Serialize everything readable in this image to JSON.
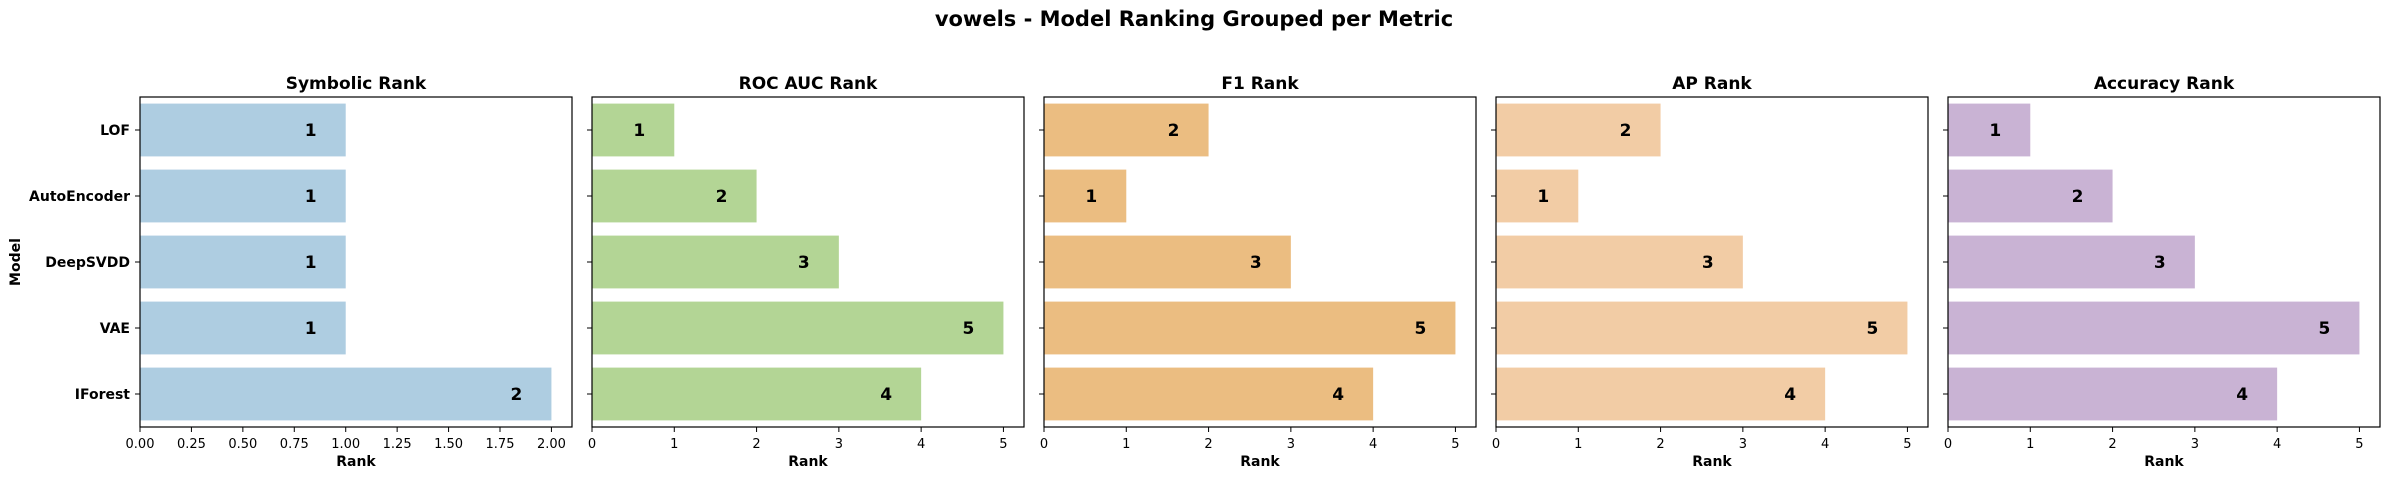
{
  "suptitle": "vowels - Model Ranking Grouped per Metric",
  "ylabel": "Model",
  "chart_data": [
    {
      "type": "bar",
      "orientation": "horizontal",
      "title": "Symbolic Rank",
      "xlabel": "Rank",
      "categories": [
        "LOF",
        "AutoEncoder",
        "DeepSVDD",
        "VAE",
        "IForest"
      ],
      "values": [
        1,
        1,
        1,
        1,
        2
      ],
      "xlim": [
        0,
        2.1
      ],
      "xticks": [
        "0.00",
        "0.25",
        "0.50",
        "0.75",
        "1.00",
        "1.25",
        "1.50",
        "1.75",
        "2.00"
      ],
      "color": "#aecde1",
      "grid": false
    },
    {
      "type": "bar",
      "orientation": "horizontal",
      "title": "ROC AUC Rank",
      "xlabel": "Rank",
      "categories": [
        "LOF",
        "AutoEncoder",
        "DeepSVDD",
        "VAE",
        "IForest"
      ],
      "values": [
        1,
        2,
        3,
        5,
        4
      ],
      "xlim": [
        0,
        5.25
      ],
      "xticks": [
        "0",
        "1",
        "2",
        "3",
        "4",
        "5"
      ],
      "color": "#b3d595",
      "grid": false
    },
    {
      "type": "bar",
      "orientation": "horizontal",
      "title": "F1 Rank",
      "xlabel": "Rank",
      "categories": [
        "LOF",
        "AutoEncoder",
        "DeepSVDD",
        "VAE",
        "IForest"
      ],
      "values": [
        2,
        1,
        3,
        5,
        4
      ],
      "xlim": [
        0,
        5.25
      ],
      "xticks": [
        "0",
        "1",
        "2",
        "3",
        "4",
        "5"
      ],
      "color": "#ebbd81",
      "grid": false
    },
    {
      "type": "bar",
      "orientation": "horizontal",
      "title": "AP Rank",
      "xlabel": "Rank",
      "categories": [
        "LOF",
        "AutoEncoder",
        "DeepSVDD",
        "VAE",
        "IForest"
      ],
      "values": [
        2,
        1,
        3,
        5,
        4
      ],
      "xlim": [
        0,
        5.25
      ],
      "xticks": [
        "0",
        "1",
        "2",
        "3",
        "4",
        "5"
      ],
      "color": "#f2cca5",
      "grid": false
    },
    {
      "type": "bar",
      "orientation": "horizontal",
      "title": "Accuracy Rank",
      "xlabel": "Rank",
      "categories": [
        "LOF",
        "AutoEncoder",
        "DeepSVDD",
        "VAE",
        "IForest"
      ],
      "values": [
        1,
        2,
        3,
        5,
        4
      ],
      "xlim": [
        0,
        5.25
      ],
      "xticks": [
        "0",
        "1",
        "2",
        "3",
        "4",
        "5"
      ],
      "color": "#c9b3d4",
      "grid": false
    }
  ]
}
